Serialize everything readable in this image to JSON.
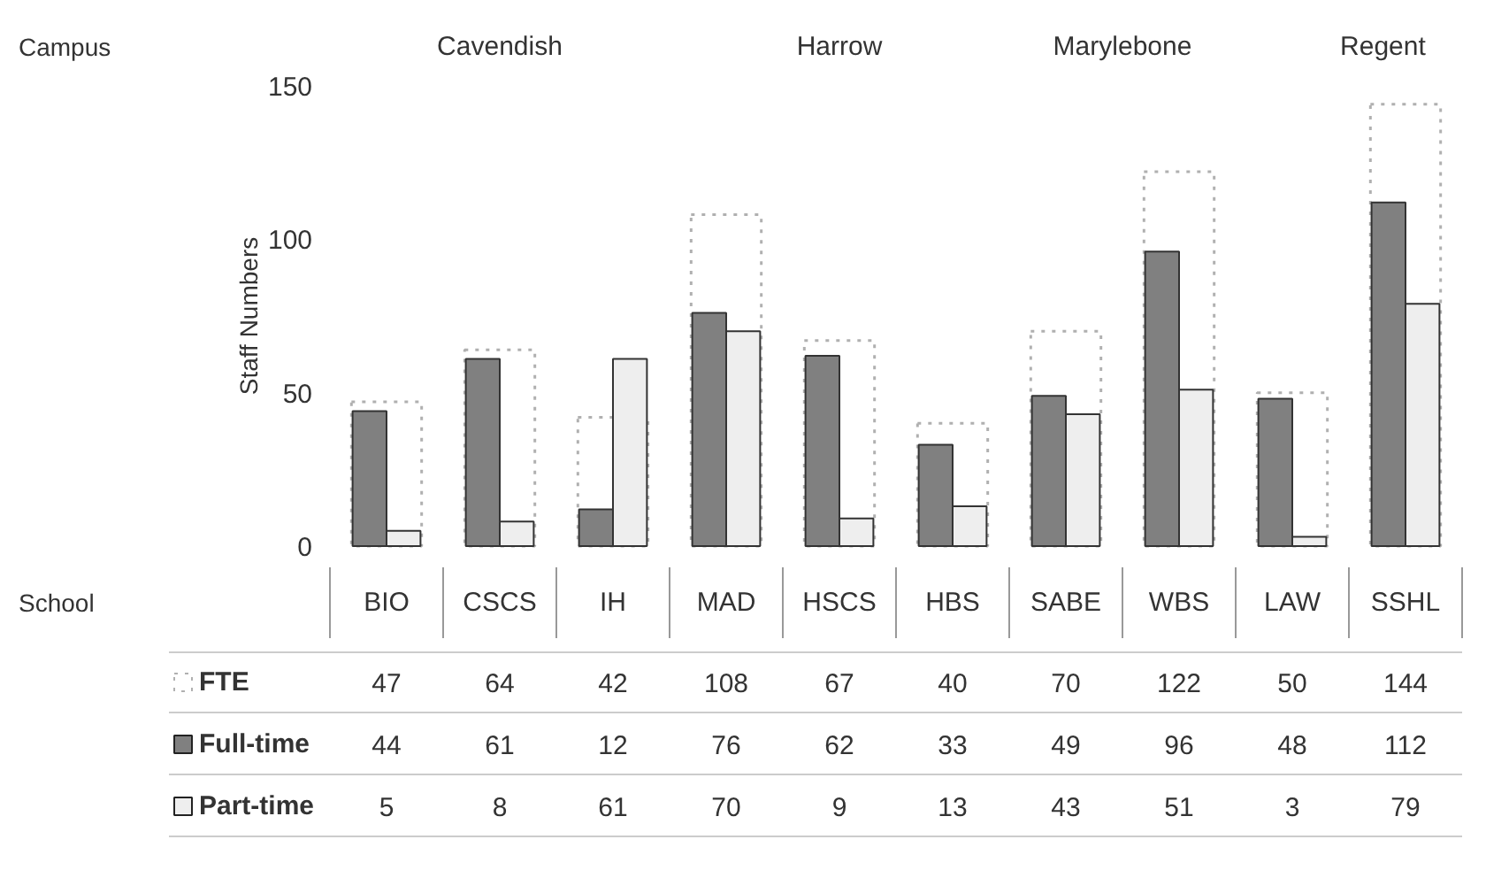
{
  "chart_data": {
    "type": "bar",
    "ylabel": "Staff Numbers",
    "categories": [
      "BIO",
      "CSCS",
      "IH",
      "MAD",
      "HSCS",
      "HBS",
      "SABE",
      "WBS",
      "LAW",
      "SSHL"
    ],
    "series": [
      {
        "name": "FTE",
        "color": "#b0b0b0",
        "line_style": "dotted",
        "values": [
          47,
          64,
          42,
          108,
          67,
          40,
          70,
          122,
          50,
          144
        ]
      },
      {
        "name": "Full-time",
        "color": "#808080",
        "values": [
          44,
          61,
          12,
          76,
          62,
          33,
          49,
          96,
          48,
          112
        ]
      },
      {
        "name": "Part-time",
        "color": "#eeeeee",
        "values": [
          5,
          8,
          61,
          70,
          9,
          13,
          43,
          51,
          3,
          79
        ]
      }
    ],
    "ylim": [
      0,
      150
    ],
    "yticks": [
      0,
      50,
      100,
      150
    ],
    "grid": false,
    "legend": "bottom left",
    "data_labels": true,
    "annotations": [
      "Campus",
      "Cavendish",
      "Harrow",
      "Marylebone",
      "Regent",
      "School"
    ]
  }
}
